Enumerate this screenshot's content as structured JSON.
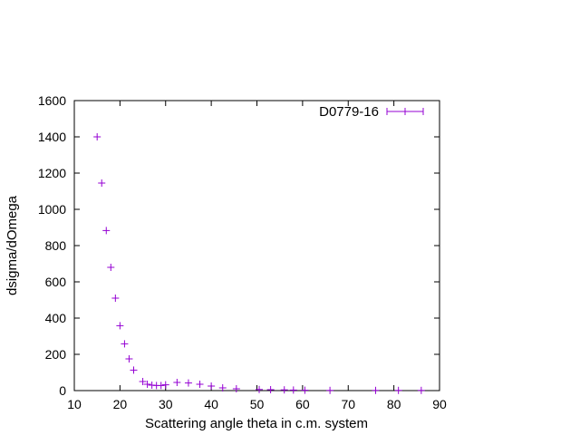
{
  "chart_data": {
    "type": "scatter",
    "title": "",
    "xlabel": "Scattering angle theta in c.m. system",
    "ylabel": "dsigma/dOmega",
    "xlim": [
      10,
      90
    ],
    "ylim": [
      0,
      1600
    ],
    "xticks": [
      10,
      20,
      30,
      40,
      50,
      60,
      70,
      80,
      90
    ],
    "yticks": [
      0,
      200,
      400,
      600,
      800,
      1000,
      1200,
      1400,
      1600
    ],
    "grid": false,
    "legend_position": "top-right",
    "series": [
      {
        "name": "D0779-16",
        "color": "#9400d3",
        "marker": "plus",
        "points": [
          [
            15.0,
            1400
          ],
          [
            16.0,
            1145
          ],
          [
            17.0,
            883
          ],
          [
            18.0,
            680
          ],
          [
            19.0,
            510
          ],
          [
            20.0,
            358
          ],
          [
            21.0,
            258
          ],
          [
            22.0,
            175
          ],
          [
            23.0,
            113
          ],
          [
            25.0,
            50
          ],
          [
            26.0,
            35
          ],
          [
            27.0,
            30
          ],
          [
            28.0,
            28
          ],
          [
            29.0,
            28
          ],
          [
            30.0,
            32
          ],
          [
            32.5,
            45
          ],
          [
            35.0,
            42
          ],
          [
            37.5,
            35
          ],
          [
            40.0,
            25
          ],
          [
            42.5,
            15
          ],
          [
            45.5,
            10
          ],
          [
            50.5,
            6
          ],
          [
            53.0,
            5
          ],
          [
            56.0,
            4
          ],
          [
            58.0,
            3
          ],
          [
            60.5,
            2
          ],
          [
            66.0,
            1
          ],
          [
            76.0,
            1
          ],
          [
            81.0,
            1
          ],
          [
            86.0,
            1
          ]
        ]
      }
    ]
  }
}
